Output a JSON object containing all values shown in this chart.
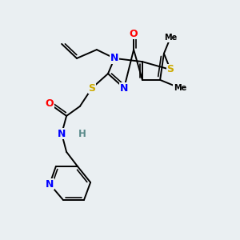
{
  "background_color": "#eaeff2",
  "atom_colors": {
    "C": "#000000",
    "N": "#0000ff",
    "O": "#ff0000",
    "S": "#ccaa00",
    "H": "#5a8a8a"
  },
  "bond_color": "#000000",
  "bond_lw": 1.4,
  "fig_size": [
    3.0,
    3.0
  ],
  "dpi": 100
}
